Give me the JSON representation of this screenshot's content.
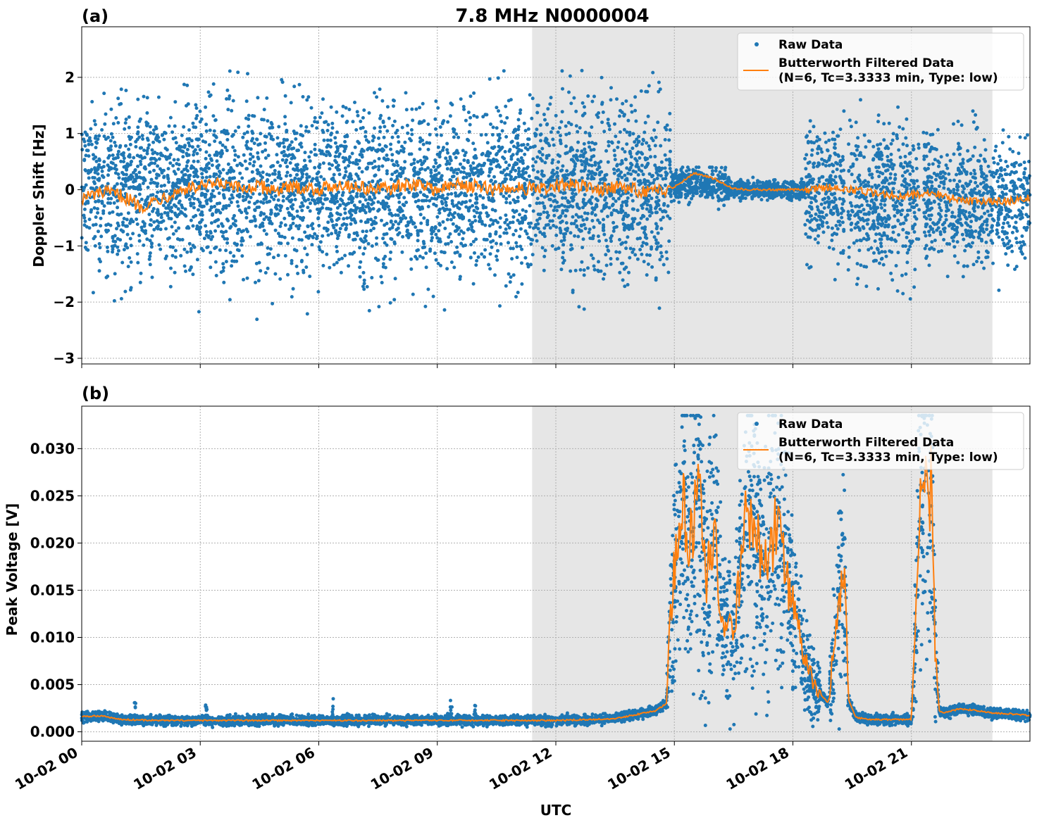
{
  "figure": {
    "title": "7.8 MHz N0000004",
    "xlabel": "UTC",
    "shade_color": "#e6e6e6",
    "raw_color": "#1f77b4",
    "filtered_color": "#ff7f0e"
  },
  "chart_data": [
    {
      "type": "scatter",
      "panel_label": "(a)",
      "title": "7.8 MHz N0000004",
      "xlabel": "",
      "ylabel": "Doppler Shift [Hz]",
      "xlim_hours": [
        0,
        24
      ],
      "ylim": [
        -3.1,
        2.9
      ],
      "yticks": [
        -3,
        -2,
        -1,
        0,
        1,
        2
      ],
      "ytick_labels": [
        "−3",
        "−2",
        "−1",
        "0",
        "1",
        "2"
      ],
      "xticks_hours": [
        0,
        3,
        6,
        9,
        12,
        15,
        18,
        21
      ],
      "shaded_interval_hours": [
        11.4,
        23.05
      ],
      "grid": true,
      "legend_position": "top-right",
      "series": [
        {
          "name": "Raw Data",
          "kind": "points",
          "color": "#1f77b4",
          "segments": [
            {
              "x": [
                0,
                14.9
              ],
              "center": 0.0,
              "spread": 0.75,
              "max": 2.5,
              "min": -2.8
            },
            {
              "x": [
                14.9,
                16.3
              ],
              "center": 0.1,
              "spread": 0.15,
              "max": 0.4,
              "min": -0.6
            },
            {
              "x": [
                16.3,
                18.3
              ],
              "center": 0.0,
              "spread": 0.08,
              "max": 0.3,
              "min": -0.9
            },
            {
              "x": [
                18.3,
                19.3
              ],
              "center": 0.0,
              "spread": 0.55,
              "max": 1.4,
              "min": -1.6
            },
            {
              "x": [
                19.4,
                21.2
              ],
              "center": -0.1,
              "spread": 0.65,
              "max": 1.6,
              "min": -2.0
            },
            {
              "x": [
                21.3,
                24.0
              ],
              "center": -0.2,
              "spread": 0.55,
              "max": 1.4,
              "min": -1.9
            }
          ]
        },
        {
          "name": "Butterworth Filtered Data\n(N=6, Tc=3.3333 min, Type: low)",
          "kind": "line",
          "color": "#ff7f0e",
          "x": [
            0,
            0.5,
            1,
            1.5,
            2,
            2.5,
            3,
            3.5,
            4,
            4.5,
            5,
            5.5,
            6,
            6.5,
            7,
            7.5,
            8,
            8.5,
            9,
            9.5,
            10,
            10.5,
            11,
            11.5,
            12,
            12.5,
            13,
            13.5,
            14,
            14.5,
            15,
            15.5,
            16,
            16.5,
            17,
            17.5,
            18,
            18.5,
            19,
            19.5,
            20,
            20.5,
            21,
            21.5,
            22,
            22.5,
            23,
            23.5,
            24
          ],
          "y": [
            -0.15,
            -0.05,
            -0.1,
            -0.3,
            -0.15,
            0.0,
            0.05,
            0.1,
            0.02,
            0.05,
            0.0,
            0.05,
            0.0,
            0.1,
            0.05,
            0.0,
            0.05,
            0.1,
            0.0,
            0.1,
            0.05,
            0.0,
            0.05,
            0.0,
            0.05,
            0.1,
            0.0,
            0.05,
            0.0,
            -0.05,
            0.05,
            0.3,
            0.2,
            0.02,
            0.0,
            0.0,
            0.0,
            0.0,
            0.05,
            0.0,
            -0.05,
            -0.1,
            -0.1,
            -0.05,
            -0.15,
            -0.2,
            -0.2,
            -0.2,
            -0.15
          ]
        }
      ]
    },
    {
      "type": "scatter",
      "panel_label": "(b)",
      "title": "",
      "xlabel": "UTC",
      "ylabel": "Peak Voltage [V]",
      "xlim_hours": [
        0,
        24
      ],
      "ylim": [
        -0.001,
        0.0345
      ],
      "yticks": [
        0.0,
        0.005,
        0.01,
        0.015,
        0.02,
        0.025,
        0.03
      ],
      "ytick_labels": [
        "0.000",
        "0.005",
        "0.010",
        "0.015",
        "0.020",
        "0.025",
        "0.030"
      ],
      "xticks_hours": [
        0,
        3,
        6,
        9,
        12,
        15,
        18,
        21
      ],
      "xtick_labels": [
        "10-02 00",
        "10-02 03",
        "10-02 06",
        "10-02 09",
        "10-02 12",
        "10-02 15",
        "10-02 18",
        "10-02 21"
      ],
      "shaded_interval_hours": [
        11.4,
        23.05
      ],
      "grid": true,
      "legend_position": "top-right",
      "series": [
        {
          "name": "Raw Data",
          "kind": "points",
          "color": "#1f77b4",
          "spikes": [
            {
              "x": 1.35,
              "y": 0.0031
            },
            {
              "x": 3.15,
              "y": 0.003
            },
            {
              "x": 6.35,
              "y": 0.0046
            },
            {
              "x": 9.35,
              "y": 0.0034
            },
            {
              "x": 9.95,
              "y": 0.0028
            }
          ]
        },
        {
          "name": "Butterworth Filtered Data\n(N=6, Tc=3.3333 min, Type: low)",
          "kind": "line",
          "color": "#ff7f0e",
          "x": [
            0,
            0.5,
            1,
            2,
            3,
            4,
            5,
            6,
            7,
            8,
            9,
            10,
            11,
            12,
            13,
            13.5,
            14,
            14.5,
            14.8,
            14.9,
            15.0,
            15.2,
            15.4,
            15.6,
            15.8,
            16.0,
            16.2,
            16.5,
            16.8,
            17.0,
            17.3,
            17.6,
            17.9,
            18.1,
            18.3,
            18.6,
            18.9,
            19.1,
            19.3,
            19.4,
            19.6,
            20.0,
            20.5,
            21.0,
            21.1,
            21.2,
            21.3,
            21.5,
            21.6,
            21.7,
            21.8,
            22.2,
            22.6,
            23.0,
            23.5,
            24
          ],
          "y": [
            0.0016,
            0.0017,
            0.0013,
            0.0012,
            0.0012,
            0.0012,
            0.0012,
            0.0012,
            0.0012,
            0.0012,
            0.0012,
            0.0012,
            0.0012,
            0.0012,
            0.0013,
            0.0014,
            0.0018,
            0.0022,
            0.003,
            0.012,
            0.017,
            0.024,
            0.02,
            0.026,
            0.016,
            0.022,
            0.012,
            0.01,
            0.022,
            0.021,
            0.018,
            0.022,
            0.015,
            0.012,
            0.0075,
            0.0045,
            0.003,
            0.012,
            0.019,
            0.0035,
            0.0015,
            0.0013,
            0.0013,
            0.0013,
            0.01,
            0.023,
            0.025,
            0.026,
            0.009,
            0.0022,
            0.002,
            0.0024,
            0.0023,
            0.002,
            0.0019,
            0.0017
          ]
        }
      ]
    }
  ]
}
